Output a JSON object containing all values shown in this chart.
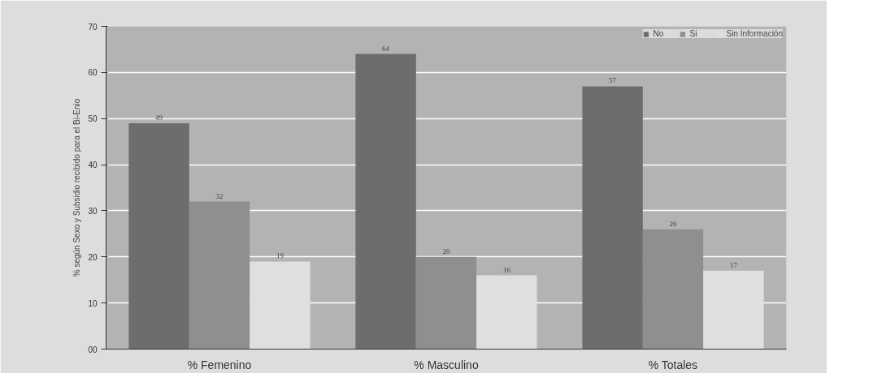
{
  "chart_data": {
    "type": "bar",
    "ylabel": "% según Sexo y Subsidio recibido para el Bi-Enio",
    "categories": [
      "% Femenino",
      "% Masculino",
      "% Totales"
    ],
    "series": [
      {
        "name": "No",
        "color": "#6d6d6f",
        "values": [
          49,
          64,
          57
        ]
      },
      {
        "name": "Si",
        "color": "#8f8f91",
        "values": [
          32,
          20,
          26
        ]
      },
      {
        "name": "Sin Información",
        "color": "#dfdfe1",
        "values": [
          19,
          16,
          17
        ]
      }
    ],
    "ylim": [
      0,
      70
    ],
    "yticks": [
      {
        "value": 0,
        "label": "00"
      },
      10,
      20,
      30,
      40,
      50,
      60,
      70
    ],
    "grid": "y",
    "legend": "top right",
    "data_labels": true
  }
}
